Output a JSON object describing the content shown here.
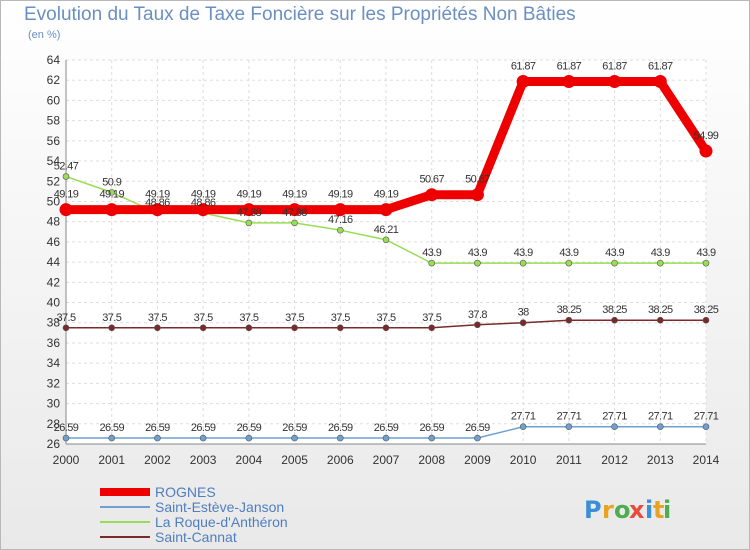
{
  "chart_data": {
    "type": "line",
    "title": "Evolution du Taux de Taxe Foncière sur les Propriétés Non Bâties",
    "unit_label": "(en %)",
    "x": [
      "2000",
      "2001",
      "2002",
      "2003",
      "2004",
      "2005",
      "2006",
      "2007",
      "2008",
      "2009",
      "2010",
      "2011",
      "2012",
      "2013",
      "2014"
    ],
    "ylim": [
      26,
      64
    ],
    "yticks": [
      26,
      28,
      30,
      32,
      34,
      36,
      38,
      40,
      42,
      44,
      46,
      48,
      50,
      52,
      54,
      56,
      58,
      60,
      62,
      64
    ],
    "grid": true,
    "legend_position": "bottom-left",
    "series": [
      {
        "name": "ROGNES",
        "color": "#ee0000",
        "emphasis": true,
        "values": [
          49.19,
          49.19,
          49.19,
          49.19,
          49.19,
          49.19,
          49.19,
          49.19,
          50.67,
          50.67,
          61.87,
          61.87,
          61.87,
          61.87,
          54.99
        ],
        "labels": [
          "49.19",
          "49.19",
          "49.19",
          "49.19",
          "49.19",
          "49.19",
          "49.19",
          "49.19",
          "50.67",
          "50.67",
          "61.87",
          "61.87",
          "61.87",
          "61.87",
          "54.99"
        ]
      },
      {
        "name": "Saint-Estève-Janson",
        "color": "#6fa0d0",
        "emphasis": false,
        "values": [
          26.59,
          26.59,
          26.59,
          26.59,
          26.59,
          26.59,
          26.59,
          26.59,
          26.59,
          26.59,
          27.71,
          27.71,
          27.71,
          27.71,
          27.71
        ],
        "labels": [
          "26.59",
          "26.59",
          "26.59",
          "26.59",
          "26.59",
          "26.59",
          "26.59",
          "26.59",
          "26.59",
          "26.59",
          "27.71",
          "27.71",
          "27.71",
          "27.71",
          "27.71"
        ]
      },
      {
        "name": "La Roque-d'Anthéron",
        "color": "#99dd55",
        "emphasis": false,
        "values": [
          52.47,
          50.9,
          48.86,
          48.86,
          47.88,
          47.88,
          47.16,
          46.21,
          43.9,
          43.9,
          43.9,
          43.9,
          43.9,
          43.9,
          43.9
        ],
        "labels": [
          "52.47",
          "50.9",
          "48.86",
          "48.86",
          "47.88",
          "47.88",
          "47.16",
          "46.21",
          "43.9",
          "43.9",
          "43.9",
          "43.9",
          "43.9",
          "43.9",
          "43.9"
        ]
      },
      {
        "name": "Saint-Cannat",
        "color": "#7a2a2a",
        "emphasis": false,
        "values": [
          37.5,
          37.5,
          37.5,
          37.5,
          37.5,
          37.5,
          37.5,
          37.5,
          37.5,
          37.8,
          38,
          38.25,
          38.25,
          38.25,
          38.25
        ],
        "labels": [
          "37.5",
          "37.5",
          "37.5",
          "37.5",
          "37.5",
          "37.5",
          "37.5",
          "37.5",
          "37.5",
          "37.8",
          "38",
          "38.25",
          "38.25",
          "38.25",
          "38.25"
        ]
      }
    ]
  },
  "branding": {
    "letters": [
      "P",
      "r",
      "o",
      "x",
      "i",
      "t",
      "i"
    ],
    "colors": [
      "#3b8fd6",
      "#e9a322",
      "#4cae4f",
      "#e84c3d",
      "#3b8fd6",
      "#e9a322",
      "#4cae4f"
    ]
  }
}
